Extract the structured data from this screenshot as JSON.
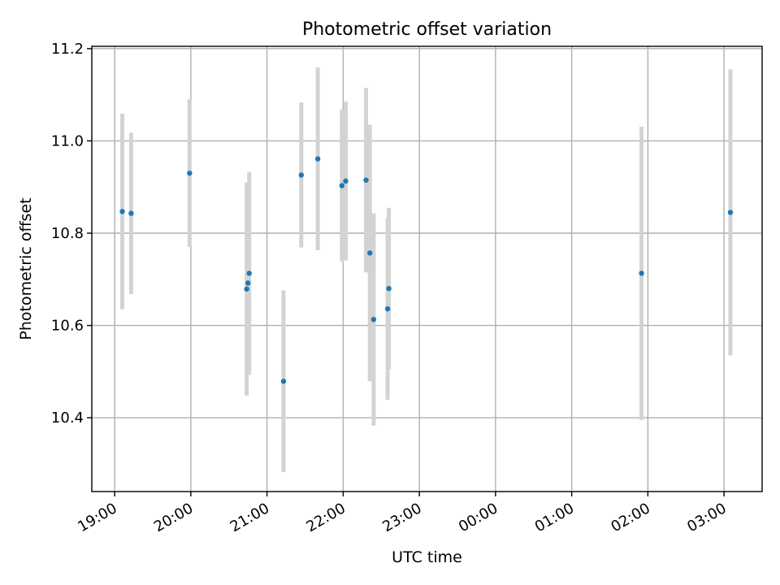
{
  "chart_data": {
    "type": "scatter",
    "title": "Photometric offset variation",
    "xlabel": "UTC time",
    "ylabel": "Photometric offset",
    "ylim": [
      10.24,
      11.205
    ],
    "xlim": [
      "18:42",
      "03:30 +1d"
    ],
    "grid": true,
    "x_ticks": [
      "19:00",
      "20:00",
      "21:00",
      "22:00",
      "23:00",
      "00:00",
      "01:00",
      "02:00",
      "03:00"
    ],
    "y_ticks": [
      10.4,
      10.6,
      10.8,
      11.0,
      11.2
    ],
    "y_tick_labels": [
      "10.4",
      "10.6",
      "10.8",
      "11.0",
      "11.2"
    ],
    "colors": {
      "points": "#1f77b4",
      "error_bars": "#d3d3d3",
      "grid": "#b0b0b0"
    },
    "points": [
      {
        "t": "19:06",
        "y": 10.847,
        "err": 0.212
      },
      {
        "t": "19:13",
        "y": 10.843,
        "err": 0.175
      },
      {
        "t": "19:59",
        "y": 10.93,
        "err": 0.16
      },
      {
        "t": "20:44",
        "y": 10.679,
        "err": 0.231
      },
      {
        "t": "20:45",
        "y": 10.692,
        "err": 0.198
      },
      {
        "t": "20:46",
        "y": 10.713,
        "err": 0.22
      },
      {
        "t": "21:13",
        "y": 10.479,
        "err": 0.197
      },
      {
        "t": "21:27",
        "y": 10.926,
        "err": 0.157
      },
      {
        "t": "21:40",
        "y": 10.961,
        "err": 0.198
      },
      {
        "t": "21:59",
        "y": 10.903,
        "err": 0.165
      },
      {
        "t": "22:02",
        "y": 10.913,
        "err": 0.172
      },
      {
        "t": "22:18",
        "y": 10.915,
        "err": 0.2
      },
      {
        "t": "22:21",
        "y": 10.757,
        "err": 0.278
      },
      {
        "t": "22:24",
        "y": 10.613,
        "err": 0.23
      },
      {
        "t": "22:35",
        "y": 10.636,
        "err": 0.197
      },
      {
        "t": "22:36",
        "y": 10.68,
        "err": 0.175
      },
      {
        "t": "01:55 +1d",
        "y": 10.713,
        "err": 0.318
      },
      {
        "t": "03:05 +1d",
        "y": 10.845,
        "err": 0.31
      }
    ]
  }
}
